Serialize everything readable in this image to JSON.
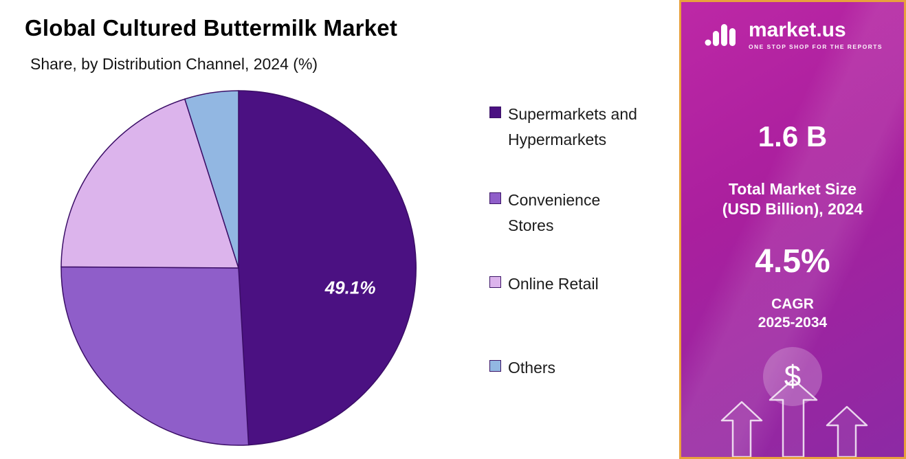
{
  "header": {
    "title": "Global Cultured Buttermilk Market",
    "subtitle": "Share, by Distribution Channel, 2024 (%)"
  },
  "chart_data": {
    "type": "pie",
    "title": "Global Cultured Buttermilk Market",
    "subtitle": "Share, by Distribution Channel, 2024 (%)",
    "unit": "%",
    "direction": "clockwise",
    "start_angle_deg": 0,
    "legend_position": "right",
    "stroke_color": "#3a0d66",
    "slices": [
      {
        "label": "Supermarkets and Hypermarkets",
        "value": 49.1,
        "color": "#4b1182",
        "data_label": "49.1%",
        "label_angle_deg": 100,
        "label_radius_frac": 0.64
      },
      {
        "label": "Convenience Stores",
        "value": 26.0,
        "color": "#8f5ec9",
        "data_label": ""
      },
      {
        "label": "Online Retail",
        "value": 20.0,
        "color": "#dcb4ec",
        "data_label": ""
      },
      {
        "label": "Others",
        "value": 4.9,
        "color": "#92b7e2",
        "data_label": ""
      }
    ],
    "note": "Only the 49.1% data label is shown in the figure; other slice values are estimated from arc angles."
  },
  "sidebar": {
    "logo_text": "market.us",
    "logo_tagline": "ONE STOP SHOP FOR THE REPORTS",
    "market_size_value": "1.6 B",
    "market_size_label_line1": "Total Market Size",
    "market_size_label_line2": "(USD Billion), 2024",
    "cagr_value": "4.5%",
    "cagr_label_line1": "CAGR",
    "cagr_label_line2": "2025-2034",
    "dollar_symbol": "$",
    "colors": {
      "border": "#e8a13c",
      "bg_from": "#bd28a6",
      "bg_to": "#8c2aa4"
    }
  }
}
